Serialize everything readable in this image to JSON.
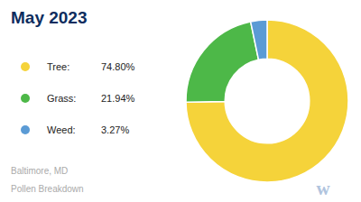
{
  "chart_data": {
    "type": "pie",
    "title": "May 2023",
    "categories": [
      "Tree:",
      "Grass:",
      "Weed:"
    ],
    "values": [
      74.8,
      21.94,
      3.27
    ],
    "value_labels": [
      "74.80%",
      "21.94%",
      "3.27%"
    ],
    "colors": [
      "#f5d33a",
      "#4db848",
      "#5b9bd5"
    ],
    "legend": "left",
    "annotations": [
      "Baltimore, MD",
      "Pollen Breakdown",
      "w"
    ]
  }
}
